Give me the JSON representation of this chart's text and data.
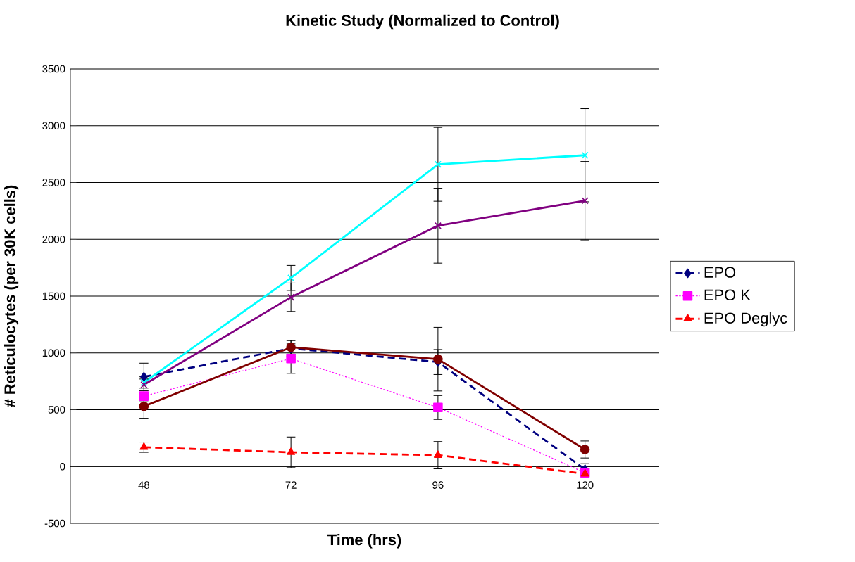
{
  "chart_data": {
    "type": "line",
    "title": "Kinetic Study (Normalized to Control)",
    "xlabel": "Time (hrs)",
    "ylabel": "# Reticulocytes (per 30K cells)",
    "categories": [
      "48",
      "72",
      "96",
      "120"
    ],
    "ylim": [
      -500,
      3500
    ],
    "yticks": [
      -500,
      0,
      500,
      1000,
      1500,
      2000,
      2500,
      3000,
      3500
    ],
    "grid": "y",
    "legend": "right",
    "series": [
      {
        "name": "EPO",
        "color": "#000080",
        "marker": "diamond",
        "line_style": "dashed",
        "values": [
          790,
          1040,
          920,
          -25
        ],
        "errors": [
          120,
          70,
          110,
          50
        ]
      },
      {
        "name": "EPO K",
        "color": "#ff00ff",
        "marker": "square",
        "line_style": "dotted",
        "values": [
          620,
          950,
          520,
          -55
        ],
        "errors": [
          50,
          130,
          105,
          null
        ]
      },
      {
        "name": "EPO Deglyc",
        "color": "#ff0000",
        "marker": "triangle",
        "line_style": "dashed",
        "values": [
          170,
          125,
          100,
          -65
        ],
        "errors": [
          45,
          135,
          120,
          null
        ]
      },
      {
        "color": "#00ffff",
        "marker": "cross",
        "line_style": "solid",
        "values": [
          740,
          1660,
          2660,
          2740
        ],
        "errors": [
          50,
          110,
          325,
          410
        ]
      },
      {
        "color": "#800080",
        "marker": "cross",
        "line_style": "solid",
        "values": [
          720,
          1490,
          2120,
          2340
        ],
        "errors": [
          50,
          125,
          330,
          345
        ]
      },
      {
        "color": "#800000",
        "marker": "circle",
        "line_style": "solid",
        "values": [
          530,
          1050,
          945,
          150
        ],
        "errors": [
          105,
          60,
          280,
          75
        ]
      }
    ]
  }
}
